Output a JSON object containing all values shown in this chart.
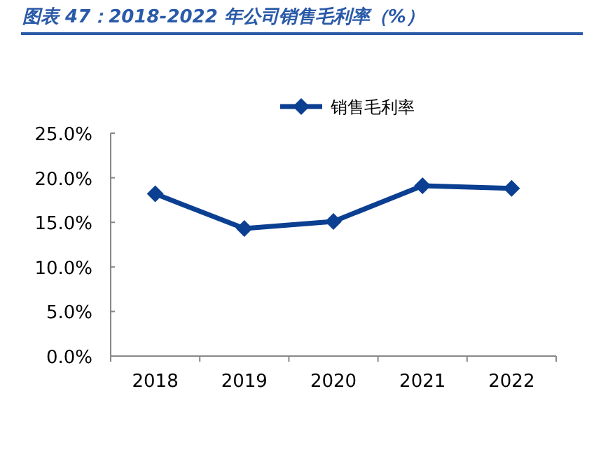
{
  "chart_data": {
    "type": "line",
    "title": "图表 47：2018-2022 年公司销售毛利率（%）",
    "categories": [
      "2018",
      "2019",
      "2020",
      "2021",
      "2022"
    ],
    "series": [
      {
        "name": "销售毛利率",
        "color": "#0b3f91",
        "values": [
          18.2,
          14.3,
          15.1,
          19.1,
          18.8
        ]
      }
    ],
    "ylim": [
      0,
      25
    ],
    "yticks": [
      {
        "value": 0,
        "label": "0.0%"
      },
      {
        "value": 5,
        "label": "5.0%"
      },
      {
        "value": 10,
        "label": "10.0%"
      },
      {
        "value": 15,
        "label": "15.0%"
      },
      {
        "value": 20,
        "label": "20.0%"
      },
      {
        "value": 25,
        "label": "25.0%"
      }
    ],
    "legend": "top",
    "marker": "diamond",
    "line_style": "solid"
  }
}
